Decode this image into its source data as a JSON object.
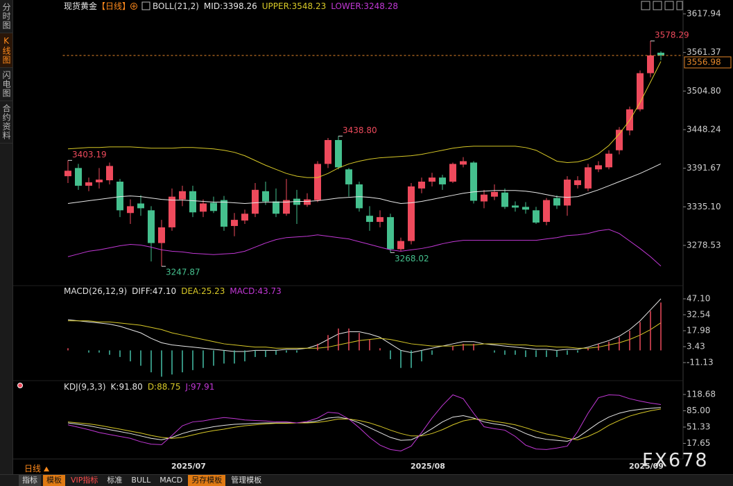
{
  "sidebar_tabs": [
    "分时图",
    "K线图",
    "闪电图",
    "合约资料"
  ],
  "active_sidebar_tab": 1,
  "toolbar_tabs": [
    "指标",
    "模板",
    "VIP指标",
    "标准",
    "BULL",
    "MACD",
    "另存模板",
    "管理模板"
  ],
  "period": "日线",
  "watermark": "FX678",
  "chart_data": [
    {
      "type": "candlestick",
      "title": "现货黄金",
      "subtitle": "【日线】",
      "subtitle_color": "#ff8a1c",
      "indicator": "BOLL(21,2)",
      "categories": [
        null,
        null,
        null,
        null,
        null,
        null,
        null,
        null,
        null,
        null,
        null,
        null,
        "2025/07",
        null,
        null,
        null,
        null,
        null,
        null,
        null,
        null,
        null,
        null,
        null,
        null,
        null,
        null,
        null,
        null,
        null,
        null,
        null,
        null,
        null,
        null,
        "2025/08",
        null,
        null,
        null,
        null,
        null,
        null,
        null,
        null,
        null,
        null,
        null,
        null,
        null,
        null,
        null,
        null,
        null,
        null,
        null,
        null,
        "2025/09",
        null
      ],
      "open": [
        3380,
        3392,
        3366,
        3371,
        3374,
        3372,
        3326,
        3340,
        3330,
        3282,
        3305,
        3346,
        3358,
        3328,
        3341,
        3345,
        3307,
        3315,
        3325,
        3358,
        3343,
        3325,
        3347,
        3338,
        3345,
        3398,
        3433,
        3390,
        3368,
        3322,
        3313,
        3320,
        3273,
        3285,
        3362,
        3372,
        3378,
        3372,
        3397,
        3400,
        3343,
        3350,
        3356,
        3337,
        3335,
        3330,
        3313,
        3348,
        3337,
        3367,
        3362,
        3390,
        3393,
        3418,
        3447,
        3478,
        3531,
        3561
      ],
      "high": [
        3403.19,
        3398,
        3378,
        3392,
        3400,
        3376,
        3346,
        3352,
        3336,
        3316,
        3362,
        3366,
        3366,
        3346,
        3350,
        3351,
        3326,
        3331,
        3370,
        3372,
        3362,
        3376,
        3360,
        3355,
        3402,
        3436,
        3438.8,
        3392,
        3372,
        3336,
        3330,
        3325,
        3290,
        3370,
        3378,
        3385,
        3382,
        3400,
        3408,
        3402,
        3360,
        3368,
        3362,
        3343,
        3342,
        3335,
        3348,
        3352,
        3380,
        3380,
        3398,
        3402,
        3418,
        3452,
        3482,
        3535,
        3578.29,
        3563
      ],
      "low": [
        3370,
        3360,
        3358,
        3362,
        3368,
        3320,
        3310,
        3322,
        3255,
        3247.87,
        3300,
        3336,
        3320,
        3320,
        3326,
        3300,
        3292,
        3310,
        3320,
        3338,
        3320,
        3322,
        3310,
        3335,
        3342,
        3392,
        3390,
        3350,
        3328,
        3300,
        3305,
        3268.02,
        3270,
        3280,
        3355,
        3365,
        3360,
        3370,
        3393,
        3340,
        3333,
        3345,
        3332,
        3328,
        3325,
        3310,
        3308,
        3332,
        3322,
        3362,
        3358,
        3386,
        3390,
        3412,
        3440,
        3475,
        3525,
        3550
      ],
      "close": [
        3388,
        3366,
        3371,
        3375,
        3395,
        3330,
        3336,
        3333,
        3282,
        3305,
        3350,
        3358,
        3327,
        3340,
        3329,
        3306,
        3316,
        3325,
        3360,
        3343,
        3325,
        3345,
        3338,
        3346,
        3398,
        3433,
        3393,
        3368,
        3333,
        3313,
        3320,
        3273,
        3285,
        3365,
        3372,
        3378,
        3368,
        3398,
        3402,
        3344,
        3353,
        3357,
        3335,
        3334,
        3331,
        3312,
        3345,
        3337,
        3375,
        3374,
        3393,
        3396,
        3413,
        3448,
        3478,
        3531,
        3557,
        3556.98
      ],
      "high_labels": [
        "3403.19",
        null,
        null,
        null,
        null,
        null,
        null,
        null,
        null,
        null,
        null,
        null,
        null,
        null,
        null,
        null,
        null,
        null,
        null,
        null,
        null,
        null,
        null,
        null,
        null,
        null,
        "3438.80",
        null,
        null,
        null,
        null,
        null,
        null,
        null,
        null,
        null,
        null,
        null,
        null,
        null,
        null,
        null,
        null,
        null,
        null,
        null,
        null,
        null,
        null,
        null,
        null,
        null,
        null,
        null,
        null,
        null,
        "3578.29",
        null
      ],
      "low_labels": [
        null,
        null,
        null,
        null,
        null,
        null,
        null,
        null,
        null,
        "3247.87",
        null,
        null,
        null,
        null,
        null,
        null,
        null,
        null,
        null,
        null,
        null,
        null,
        null,
        null,
        null,
        null,
        null,
        null,
        null,
        null,
        null,
        "3268.02",
        null,
        null,
        null,
        null,
        null,
        null,
        null,
        null,
        null,
        null,
        null,
        null,
        null,
        null,
        null,
        null,
        null,
        null,
        null,
        null,
        null,
        null,
        null,
        null,
        null,
        null
      ],
      "up_color": "#ee4a5c",
      "down_color": "#45c08e",
      "series": [
        {
          "name": "MID:3398.26",
          "color": "#e8e8e8",
          "values": [
            3340,
            3342,
            3344,
            3346,
            3348,
            3350,
            3351,
            3350,
            3348,
            3346,
            3345,
            3345,
            3344,
            3343,
            3342,
            3342,
            3341,
            3340,
            3341,
            3342,
            3342,
            3342,
            3343,
            3343,
            3344,
            3346,
            3348,
            3349,
            3350,
            3349,
            3347,
            3343,
            3340,
            3341,
            3343,
            3346,
            3349,
            3352,
            3355,
            3357,
            3358,
            3359,
            3359,
            3359,
            3358,
            3356,
            3353,
            3350,
            3349,
            3350,
            3355,
            3360,
            3366,
            3372,
            3378,
            3384,
            3391,
            3398.26
          ]
        },
        {
          "name": "UPPER:3548.23",
          "color": "#d8c927",
          "values": [
            3420,
            3421,
            3422,
            3422,
            3423,
            3423,
            3423,
            3422,
            3421,
            3421,
            3421,
            3422,
            3422,
            3421,
            3420,
            3418,
            3415,
            3410,
            3403,
            3396,
            3390,
            3384,
            3380,
            3378,
            3378,
            3384,
            3392,
            3398,
            3402,
            3405,
            3407,
            3408,
            3409,
            3410,
            3412,
            3415,
            3418,
            3421,
            3423,
            3424,
            3424,
            3424,
            3424,
            3424,
            3422,
            3418,
            3410,
            3402,
            3400,
            3401,
            3405,
            3413,
            3425,
            3442,
            3462,
            3488,
            3518,
            3548.23
          ]
        },
        {
          "name": "LOWER:3248.28",
          "color": "#c238d6",
          "values": [
            3262,
            3266,
            3270,
            3272,
            3275,
            3278,
            3280,
            3279,
            3276,
            3272,
            3270,
            3269,
            3267,
            3266,
            3265,
            3266,
            3267,
            3270,
            3276,
            3282,
            3287,
            3290,
            3291,
            3292,
            3294,
            3292,
            3290,
            3288,
            3284,
            3280,
            3276,
            3272,
            3270,
            3272,
            3274,
            3277,
            3281,
            3284,
            3286,
            3286,
            3286,
            3286,
            3286,
            3286,
            3286,
            3286,
            3288,
            3290,
            3293,
            3294,
            3296,
            3300,
            3302,
            3296,
            3285,
            3274,
            3262,
            3248.28
          ]
        }
      ],
      "last_price": 3556.98,
      "last_price_color": "#e8892a",
      "ylim": [
        3221.6,
        3617.94
      ],
      "yticks": [
        3617.94,
        3561.37,
        {
          "value": 3504.8,
          "label": "3504.80"
        },
        3448.24,
        3391.67,
        {
          "value": 3335.1,
          "label": "3335.10"
        },
        3278.53
      ],
      "grid": false
    },
    {
      "type": "combo",
      "indicator": "MACD(26,12,9)",
      "series": [
        {
          "name": "DIFF:47.10",
          "type": "line",
          "color": "#e8e8e8",
          "values": [
            28,
            27,
            26,
            25,
            24,
            22,
            19,
            16,
            11,
            7,
            5,
            4,
            3,
            2,
            1,
            0,
            -1,
            -1,
            0,
            0,
            0,
            1,
            1,
            2,
            5,
            10,
            15,
            17,
            17,
            15,
            12,
            6,
            0,
            -2,
            0,
            2,
            4,
            6,
            8,
            8,
            6,
            5,
            4,
            3,
            2,
            1,
            1,
            0,
            1,
            1,
            3,
            6,
            9,
            13,
            19,
            27,
            37,
            47.1
          ]
        },
        {
          "name": "DEA:25.23",
          "type": "line",
          "color": "#d8c927",
          "values": [
            27,
            27,
            27,
            26,
            26,
            25,
            24,
            23,
            21,
            19,
            16,
            14,
            12,
            10,
            8,
            6,
            5,
            4,
            3,
            3,
            2,
            2,
            2,
            2,
            2,
            3,
            5,
            7,
            9,
            10,
            11,
            10,
            8,
            6,
            5,
            4,
            4,
            4,
            5,
            5,
            6,
            6,
            6,
            5,
            5,
            4,
            4,
            3,
            3,
            2,
            2,
            3,
            5,
            7,
            10,
            14,
            19,
            25.23
          ]
        },
        {
          "name": "MACD:43.73",
          "type": "bar",
          "color": "#ee4a5c",
          "negative_color": "#45c0a8",
          "label_color": "#c238d6",
          "values": [
            2,
            0,
            -2,
            -2,
            -4,
            -6,
            -10,
            -14,
            -20,
            -24,
            -22,
            -20,
            -18,
            -16,
            -14,
            -12,
            -12,
            -10,
            -6,
            -6,
            -4,
            -2,
            -2,
            0,
            6,
            14,
            20,
            20,
            16,
            10,
            2,
            -8,
            -16,
            -16,
            -10,
            -4,
            0,
            4,
            6,
            6,
            0,
            -2,
            -4,
            -4,
            -6,
            -6,
            -6,
            -6,
            -4,
            -2,
            2,
            6,
            8,
            12,
            18,
            26,
            36,
            43.73
          ]
        }
      ],
      "ylim": [
        -25.05,
        57.23
      ],
      "yticks": [
        {
          "value": 47.1,
          "label": "47.10"
        },
        32.54,
        17.98,
        3.43,
        -11.13
      ],
      "grid": false
    },
    {
      "type": "combo",
      "indicator": "KDJ(9,3,3)",
      "series": [
        {
          "name": "K:91.80",
          "type": "line",
          "color": "#e8e8e8",
          "values": [
            60,
            57,
            54,
            50,
            46,
            42,
            38,
            33,
            28,
            25,
            30,
            38,
            44,
            48,
            52,
            55,
            57,
            58,
            59,
            60,
            60,
            60,
            60,
            61,
            64,
            70,
            72,
            68,
            60,
            50,
            40,
            30,
            24,
            25,
            35,
            48,
            62,
            72,
            75,
            70,
            62,
            58,
            55,
            48,
            38,
            30,
            26,
            24,
            22,
            30,
            45,
            60,
            72,
            80,
            85,
            88,
            90,
            91.8
          ]
        },
        {
          "name": "D:88.75",
          "type": "line",
          "color": "#d8c927",
          "values": [
            62,
            60,
            58,
            55,
            51,
            47,
            43,
            39,
            34,
            30,
            28,
            30,
            35,
            40,
            44,
            47,
            51,
            54,
            56,
            58,
            59,
            59,
            60,
            60,
            61,
            64,
            68,
            68,
            65,
            60,
            53,
            45,
            38,
            33,
            33,
            38,
            46,
            56,
            64,
            68,
            67,
            63,
            60,
            56,
            50,
            43,
            37,
            33,
            28,
            25,
            32,
            42,
            55,
            65,
            74,
            80,
            85,
            88.75
          ]
        },
        {
          "name": "J:97.91",
          "type": "line",
          "color": "#c238d6",
          "values": [
            56,
            51,
            46,
            40,
            36,
            32,
            28,
            21,
            16,
            15,
            34,
            54,
            62,
            64,
            68,
            71,
            69,
            66,
            65,
            64,
            62,
            62,
            60,
            63,
            70,
            82,
            80,
            68,
            50,
            30,
            14,
            5,
            2,
            12,
            40,
            70,
            96,
            118,
            110,
            80,
            52,
            48,
            45,
            32,
            14,
            6,
            5,
            8,
            12,
            42,
            80,
            112,
            118,
            117,
            110,
            105,
            101,
            97.91
          ]
        }
      ],
      "ylim": [
        -11.7,
        138.74
      ],
      "yticks": [
        118.68,
        {
          "value": 85,
          "label": "85.00"
        },
        51.33,
        17.65
      ],
      "grid": false
    }
  ]
}
